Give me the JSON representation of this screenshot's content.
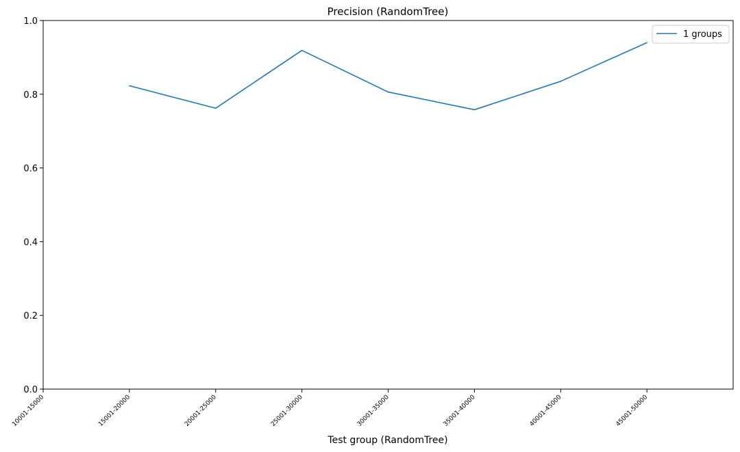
{
  "chart_data": {
    "type": "line",
    "title": "Precision (RandomTree)",
    "xlabel": "Test group (RandomTree)",
    "ylabel": "",
    "categories": [
      "10001-15000",
      "15001-20000",
      "20001-25000",
      "25001-30000",
      "30001-35000",
      "35001-40000",
      "40001-45000",
      "45001-50000"
    ],
    "ylim": [
      0,
      1.0
    ],
    "yticks": [
      "0.0",
      "0.2",
      "0.4",
      "0.6",
      "0.8",
      "1.0"
    ],
    "grid": false,
    "legend_position": "top-right",
    "series": [
      {
        "name": "1 groups",
        "color": "#1f77b4",
        "values": [
          null,
          0.823,
          0.762,
          0.919,
          0.806,
          0.758,
          0.835,
          0.94
        ]
      }
    ]
  }
}
